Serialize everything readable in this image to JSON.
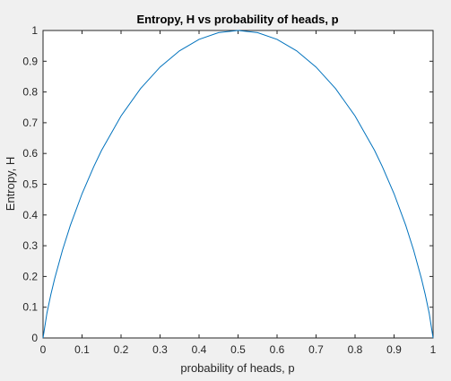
{
  "chart_data": {
    "type": "line",
    "title": "Entropy, H vs probability of heads, p",
    "xlabel": "probability of heads, p",
    "ylabel": "Entropy, H",
    "xlim": [
      0,
      1
    ],
    "ylim": [
      0,
      1
    ],
    "xticks": [
      "0",
      "0.1",
      "0.2",
      "0.3",
      "0.4",
      "0.5",
      "0.6",
      "0.7",
      "0.8",
      "0.9",
      "1"
    ],
    "yticks": [
      "0",
      "0.1",
      "0.2",
      "0.3",
      "0.4",
      "0.5",
      "0.6",
      "0.7",
      "0.8",
      "0.9",
      "1"
    ],
    "grid": false,
    "line_color": "#0072BD",
    "series": [
      {
        "x": [
          0,
          0.01,
          0.02,
          0.03,
          0.05,
          0.07,
          0.1,
          0.13,
          0.15,
          0.2,
          0.25,
          0.3,
          0.35,
          0.4,
          0.45,
          0.5,
          0.55,
          0.6,
          0.65,
          0.7,
          0.75,
          0.8,
          0.85,
          0.87,
          0.9,
          0.93,
          0.95,
          0.97,
          0.98,
          0.99,
          1
        ],
        "y": [
          0,
          0.081,
          0.141,
          0.194,
          0.286,
          0.366,
          0.469,
          0.557,
          0.61,
          0.722,
          0.811,
          0.881,
          0.934,
          0.971,
          0.993,
          1,
          0.993,
          0.971,
          0.934,
          0.881,
          0.811,
          0.722,
          0.61,
          0.557,
          0.469,
          0.366,
          0.286,
          0.194,
          0.141,
          0.081,
          0
        ]
      }
    ]
  }
}
